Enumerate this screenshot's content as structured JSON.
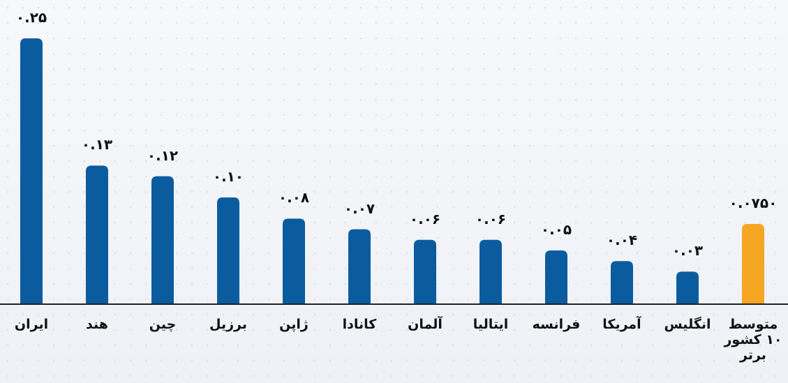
{
  "chart_data": {
    "type": "bar",
    "categories": [
      "ایران",
      "هند",
      "چین",
      "برزیل",
      "ژاپن",
      "کانادا",
      "آلمان",
      "ایتالیا",
      "فرانسه",
      "آمریکا",
      "انگلیس",
      "متوسط ۱۰ کشور برتر"
    ],
    "values": [
      0.25,
      0.13,
      0.12,
      0.1,
      0.08,
      0.07,
      0.06,
      0.06,
      0.05,
      0.04,
      0.03,
      0.075
    ],
    "value_labels": [
      "۰.۲۵",
      "۰.۱۳",
      "۰.۱۲",
      "۰.۱۰",
      "۰.۰۸",
      "۰.۰۷",
      "۰.۰۶",
      "۰.۰۶",
      "۰.۰۵",
      "۰.۰۴",
      "۰.۰۳",
      "۰.۰۷۵۰"
    ],
    "colors": [
      "#0b5c9e",
      "#0b5c9e",
      "#0b5c9e",
      "#0b5c9e",
      "#0b5c9e",
      "#0b5c9e",
      "#0b5c9e",
      "#0b5c9e",
      "#0b5c9e",
      "#0b5c9e",
      "#0b5c9e",
      "#f5a623"
    ]
  }
}
